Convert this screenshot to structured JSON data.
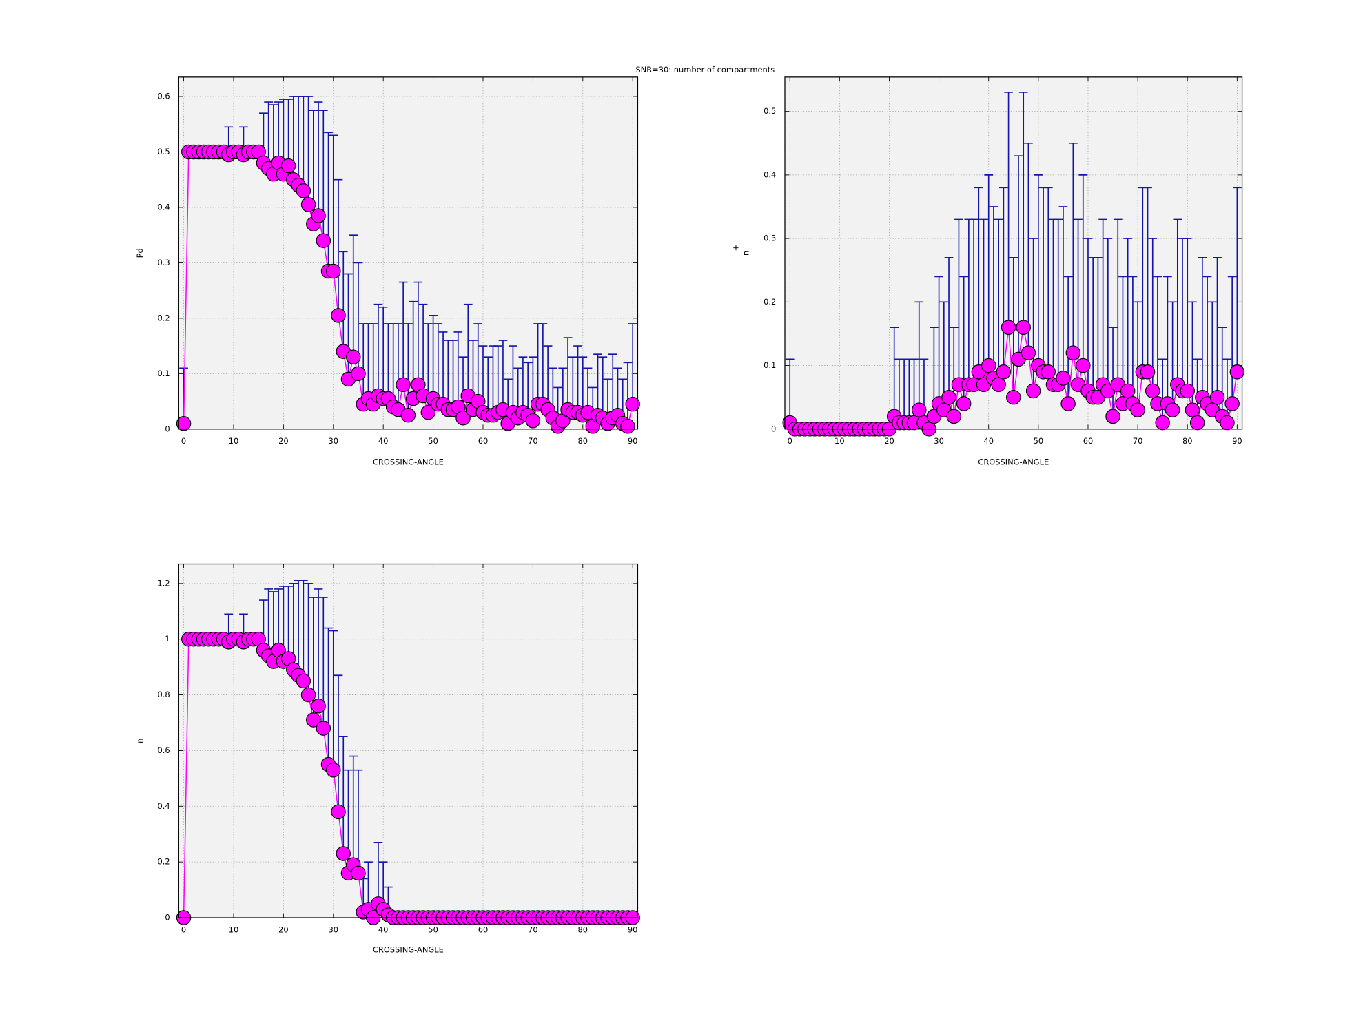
{
  "title": "SNR=30: number of compartments",
  "chart_data": [
    {
      "type": "errorbar",
      "xlabel": "CROSSING-ANGLE",
      "ylabel": "Pd",
      "color": "#ff00ff",
      "error_color": "#1414aa",
      "grid": true,
      "xlim": [
        -1,
        91
      ],
      "ylim": [
        0,
        0.635
      ],
      "xticks": [
        0,
        10,
        20,
        30,
        40,
        50,
        60,
        70,
        80,
        90
      ],
      "yticks": [
        0,
        0.1,
        0.2,
        0.3,
        0.4,
        0.5,
        0.6
      ],
      "x": [
        0,
        1,
        2,
        3,
        4,
        5,
        6,
        7,
        8,
        9,
        10,
        11,
        12,
        13,
        14,
        15,
        16,
        17,
        18,
        19,
        20,
        21,
        22,
        23,
        24,
        25,
        26,
        27,
        28,
        29,
        30,
        31,
        32,
        33,
        34,
        35,
        36,
        37,
        38,
        39,
        40,
        41,
        42,
        43,
        44,
        45,
        46,
        47,
        48,
        49,
        50,
        51,
        52,
        53,
        54,
        55,
        56,
        57,
        58,
        59,
        60,
        61,
        62,
        63,
        64,
        65,
        66,
        67,
        68,
        69,
        70,
        71,
        72,
        73,
        74,
        75,
        76,
        77,
        78,
        79,
        80,
        81,
        82,
        83,
        84,
        85,
        86,
        87,
        88,
        89,
        90
      ],
      "values": [
        0.01,
        0.5,
        0.5,
        0.5,
        0.5,
        0.5,
        0.5,
        0.5,
        0.5,
        0.495,
        0.5,
        0.5,
        0.495,
        0.5,
        0.5,
        0.5,
        0.48,
        0.47,
        0.46,
        0.48,
        0.46,
        0.475,
        0.45,
        0.44,
        0.43,
        0.405,
        0.37,
        0.385,
        0.34,
        0.285,
        0.285,
        0.205,
        0.14,
        0.09,
        0.13,
        0.1,
        0.045,
        0.055,
        0.045,
        0.06,
        0.055,
        0.055,
        0.04,
        0.035,
        0.08,
        0.025,
        0.055,
        0.08,
        0.06,
        0.03,
        0.055,
        0.045,
        0.045,
        0.035,
        0.035,
        0.04,
        0.02,
        0.06,
        0.035,
        0.05,
        0.03,
        0.025,
        0.025,
        0.03,
        0.035,
        0.01,
        0.03,
        0.02,
        0.03,
        0.025,
        0.015,
        0.045,
        0.045,
        0.035,
        0.02,
        0.005,
        0.015,
        0.035,
        0.03,
        0.03,
        0.025,
        0.03,
        0.005,
        0.025,
        0.02,
        0.01,
        0.02,
        0.025,
        0.01,
        0.005,
        0.045
      ],
      "errors": [
        0.1,
        0,
        0,
        0,
        0,
        0,
        0,
        0,
        0,
        0.05,
        0,
        0,
        0.05,
        0,
        0,
        0,
        0.09,
        0.12,
        0.125,
        0.11,
        0.135,
        0.12,
        0.15,
        0.16,
        0.17,
        0.195,
        0.205,
        0.205,
        0.235,
        0.25,
        0.245,
        0.245,
        0.18,
        0.19,
        0.22,
        0.2,
        0.145,
        0.135,
        0.145,
        0.165,
        0.165,
        0.135,
        0.15,
        0.155,
        0.185,
        0.165,
        0.175,
        0.185,
        0.165,
        0.16,
        0.15,
        0.145,
        0.13,
        0.125,
        0.125,
        0.135,
        0.11,
        0.165,
        0.125,
        0.14,
        0.12,
        0.105,
        0.125,
        0.12,
        0.125,
        0.08,
        0.12,
        0.09,
        0.1,
        0.095,
        0.115,
        0.145,
        0.145,
        0.115,
        0.09,
        0.07,
        0.095,
        0.13,
        0.1,
        0.12,
        0.105,
        0.08,
        0.07,
        0.11,
        0.11,
        0.08,
        0.115,
        0.085,
        0.08,
        0.115,
        0.145
      ]
    },
    {
      "type": "errorbar",
      "xlabel": "CROSSING-ANGLE",
      "ylabel": "n",
      "ylabel_sup": "+",
      "color": "#ff00ff",
      "error_color": "#1414aa",
      "grid": true,
      "xlim": [
        -1,
        91
      ],
      "ylim": [
        0,
        0.554
      ],
      "xticks": [
        0,
        10,
        20,
        30,
        40,
        50,
        60,
        70,
        80,
        90
      ],
      "yticks": [
        0,
        0.1,
        0.2,
        0.3,
        0.4,
        0.5
      ],
      "x": [
        0,
        1,
        2,
        3,
        4,
        5,
        6,
        7,
        8,
        9,
        10,
        11,
        12,
        13,
        14,
        15,
        16,
        17,
        18,
        19,
        20,
        21,
        22,
        23,
        24,
        25,
        26,
        27,
        28,
        29,
        30,
        31,
        32,
        33,
        34,
        35,
        36,
        37,
        38,
        39,
        40,
        41,
        42,
        43,
        44,
        45,
        46,
        47,
        48,
        49,
        50,
        51,
        52,
        53,
        54,
        55,
        56,
        57,
        58,
        59,
        60,
        61,
        62,
        63,
        64,
        65,
        66,
        67,
        68,
        69,
        70,
        71,
        72,
        73,
        74,
        75,
        76,
        77,
        78,
        79,
        80,
        81,
        82,
        83,
        84,
        85,
        86,
        87,
        88,
        89,
        90
      ],
      "values": [
        0.01,
        0,
        0,
        0,
        0,
        0,
        0,
        0,
        0,
        0,
        0,
        0,
        0,
        0,
        0,
        0,
        0,
        0,
        0,
        0,
        0,
        0.02,
        0.01,
        0.01,
        0.01,
        0.01,
        0.03,
        0.01,
        0,
        0.02,
        0.04,
        0.03,
        0.05,
        0.02,
        0.07,
        0.04,
        0.07,
        0.07,
        0.09,
        0.07,
        0.1,
        0.08,
        0.07,
        0.09,
        0.16,
        0.05,
        0.11,
        0.16,
        0.12,
        0.06,
        0.1,
        0.09,
        0.09,
        0.07,
        0.07,
        0.08,
        0.04,
        0.12,
        0.07,
        0.1,
        0.06,
        0.05,
        0.05,
        0.07,
        0.06,
        0.02,
        0.07,
        0.04,
        0.06,
        0.04,
        0.03,
        0.09,
        0.09,
        0.06,
        0.04,
        0.01,
        0.04,
        0.03,
        0.07,
        0.06,
        0.06,
        0.03,
        0.01,
        0.05,
        0.04,
        0.03,
        0.05,
        0.02,
        0.01,
        0.04,
        0.09
      ],
      "errors": [
        0.1,
        0,
        0,
        0,
        0,
        0,
        0,
        0,
        0,
        0,
        0,
        0,
        0,
        0,
        0,
        0,
        0,
        0,
        0,
        0,
        0,
        0.14,
        0.1,
        0.1,
        0.1,
        0.1,
        0.17,
        0.1,
        0,
        0.14,
        0.2,
        0.17,
        0.22,
        0.14,
        0.26,
        0.2,
        0.26,
        0.26,
        0.29,
        0.26,
        0.3,
        0.27,
        0.26,
        0.29,
        0.37,
        0.22,
        0.32,
        0.37,
        0.33,
        0.24,
        0.3,
        0.29,
        0.29,
        0.26,
        0.26,
        0.27,
        0.2,
        0.33,
        0.26,
        0.3,
        0.24,
        0.22,
        0.22,
        0.26,
        0.24,
        0.14,
        0.26,
        0.2,
        0.24,
        0.2,
        0.17,
        0.29,
        0.29,
        0.24,
        0.2,
        0.1,
        0.2,
        0.17,
        0.26,
        0.24,
        0.24,
        0.17,
        0.1,
        0.22,
        0.2,
        0.17,
        0.22,
        0.14,
        0.1,
        0.2,
        0.29
      ]
    },
    {
      "type": "errorbar",
      "xlabel": "CROSSING-ANGLE",
      "ylabel": "n",
      "ylabel_sup": "-",
      "color": "#ff00ff",
      "error_color": "#1414aa",
      "grid": true,
      "xlim": [
        -1,
        91
      ],
      "ylim": [
        0,
        1.27
      ],
      "xticks": [
        0,
        10,
        20,
        30,
        40,
        50,
        60,
        70,
        80,
        90
      ],
      "yticks": [
        0,
        0.2,
        0.4,
        0.6,
        0.8,
        1,
        1.2
      ],
      "x": [
        0,
        1,
        2,
        3,
        4,
        5,
        6,
        7,
        8,
        9,
        10,
        11,
        12,
        13,
        14,
        15,
        16,
        17,
        18,
        19,
        20,
        21,
        22,
        23,
        24,
        25,
        26,
        27,
        28,
        29,
        30,
        31,
        32,
        33,
        34,
        35,
        36,
        37,
        38,
        39,
        40,
        41,
        42,
        43,
        44,
        45,
        46,
        47,
        48,
        49,
        50,
        51,
        52,
        53,
        54,
        55,
        56,
        57,
        58,
        59,
        60,
        61,
        62,
        63,
        64,
        65,
        66,
        67,
        68,
        69,
        70,
        71,
        72,
        73,
        74,
        75,
        76,
        77,
        78,
        79,
        80,
        81,
        82,
        83,
        84,
        85,
        86,
        87,
        88,
        89,
        90
      ],
      "values": [
        0,
        1,
        1,
        1,
        1,
        1,
        1,
        1,
        1,
        0.99,
        1,
        1,
        0.99,
        1,
        1,
        1,
        0.96,
        0.94,
        0.92,
        0.96,
        0.92,
        0.93,
        0.89,
        0.87,
        0.85,
        0.8,
        0.71,
        0.76,
        0.68,
        0.55,
        0.53,
        0.38,
        0.23,
        0.16,
        0.19,
        0.16,
        0.02,
        0.03,
        0,
        0.05,
        0.03,
        0.01,
        0,
        0,
        0,
        0,
        0,
        0,
        0,
        0,
        0,
        0,
        0,
        0,
        0,
        0,
        0,
        0,
        0,
        0,
        0,
        0,
        0,
        0,
        0,
        0,
        0,
        0,
        0,
        0,
        0,
        0,
        0,
        0,
        0,
        0,
        0,
        0,
        0,
        0,
        0,
        0,
        0,
        0,
        0,
        0,
        0,
        0,
        0,
        0,
        0
      ],
      "errors": [
        0,
        0,
        0,
        0,
        0,
        0,
        0,
        0,
        0,
        0.1,
        0,
        0,
        0.1,
        0,
        0,
        0,
        0.18,
        0.24,
        0.25,
        0.22,
        0.27,
        0.26,
        0.31,
        0.34,
        0.36,
        0.4,
        0.44,
        0.42,
        0.47,
        0.49,
        0.5,
        0.49,
        0.42,
        0.37,
        0.39,
        0.37,
        0.12,
        0.17,
        0,
        0.22,
        0.17,
        0.1,
        0,
        0,
        0,
        0,
        0,
        0,
        0,
        0,
        0,
        0,
        0,
        0,
        0,
        0,
        0,
        0,
        0,
        0,
        0,
        0,
        0,
        0,
        0,
        0,
        0,
        0,
        0,
        0,
        0,
        0,
        0,
        0,
        0,
        0,
        0,
        0,
        0,
        0,
        0,
        0,
        0,
        0,
        0,
        0,
        0,
        0,
        0,
        0,
        0
      ]
    }
  ]
}
